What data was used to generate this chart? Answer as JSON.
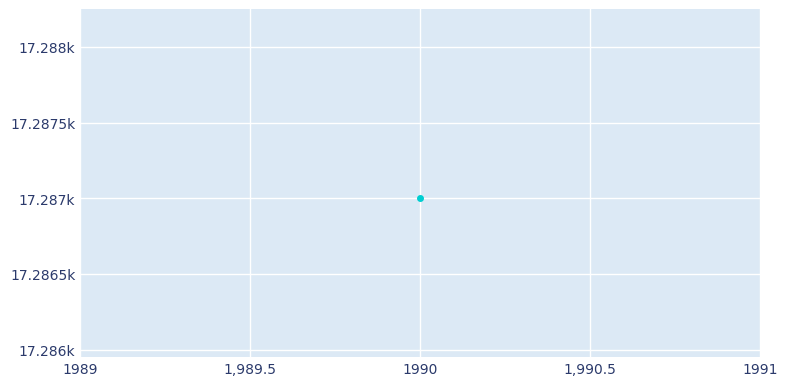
{
  "x_data": [
    1990
  ],
  "y_data": [
    17287
  ],
  "x_lim": [
    1989,
    1991
  ],
  "y_lim": [
    17285.95,
    17288.25
  ],
  "y_ticks": [
    17286,
    17286.5,
    17287,
    17287.5,
    17288
  ],
  "y_tick_labels": [
    "17.286k",
    "17.2865k",
    "17.287k",
    "17.2875k",
    "17.288k"
  ],
  "x_ticks": [
    1989,
    1989.5,
    1990,
    1990.5,
    1991
  ],
  "x_tick_labels": [
    "1989",
    "1,989.5",
    "1990",
    "1,990.5",
    "1991"
  ],
  "point_color": "#00CED1",
  "grid_color": "#ffffff",
  "tick_label_color": "#2b3a6b",
  "axes_bg_color": "#dce9f5",
  "fig_bg_color": "#ffffff",
  "point_size": 4
}
